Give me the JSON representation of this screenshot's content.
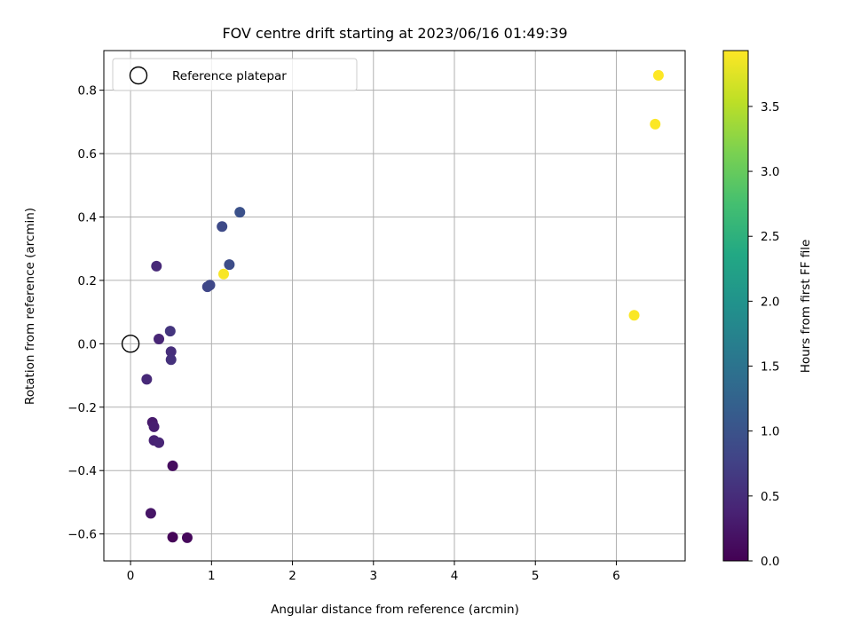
{
  "chart_data": {
    "type": "scatter",
    "title": "FOV centre drift starting at 2023/06/16 01:49:39",
    "xlabel": "Angular distance from reference (arcmin)",
    "ylabel": "Rotation from reference (arcmin)",
    "xlim": [
      -0.33,
      6.85
    ],
    "ylim": [
      -0.685,
      0.925
    ],
    "xticks": [
      0,
      1,
      2,
      3,
      4,
      5,
      6
    ],
    "yticks": [
      -0.6,
      -0.4,
      -0.2,
      0.0,
      0.2,
      0.4,
      0.6,
      0.8
    ],
    "xtick_labels": [
      "0",
      "1",
      "2",
      "3",
      "4",
      "5",
      "6"
    ],
    "ytick_labels": [
      "−0.6",
      "−0.4",
      "−0.2",
      "0.0",
      "0.2",
      "0.4",
      "0.6",
      "0.8"
    ],
    "grid": true,
    "legend": {
      "placement": "top-left",
      "entries": [
        "Reference platepar"
      ]
    },
    "reference_point": {
      "x": 0.0,
      "y": 0.0,
      "label": "Reference platepar"
    },
    "colorbar": {
      "label": "Hours from first FF file",
      "colormap": "viridis",
      "range": [
        0.0,
        3.93
      ],
      "ticks": [
        0.0,
        0.5,
        1.0,
        1.5,
        2.0,
        2.5,
        3.0,
        3.5
      ],
      "tick_labels": [
        "0.0",
        "0.5",
        "1.0",
        "1.5",
        "2.0",
        "2.5",
        "3.0",
        "3.5"
      ]
    },
    "points": [
      {
        "x": 0.52,
        "y": -0.61,
        "c": 0.05
      },
      {
        "x": 0.7,
        "y": -0.612,
        "c": 0.08
      },
      {
        "x": 0.52,
        "y": -0.385,
        "c": 0.12
      },
      {
        "x": 0.25,
        "y": -0.535,
        "c": 0.22
      },
      {
        "x": 0.27,
        "y": -0.248,
        "c": 0.28
      },
      {
        "x": 0.29,
        "y": -0.262,
        "c": 0.32
      },
      {
        "x": 0.29,
        "y": -0.305,
        "c": 0.38
      },
      {
        "x": 0.35,
        "y": -0.312,
        "c": 0.4
      },
      {
        "x": 0.2,
        "y": -0.112,
        "c": 0.45
      },
      {
        "x": 0.35,
        "y": 0.015,
        "c": 0.42
      },
      {
        "x": 0.32,
        "y": 0.245,
        "c": 0.45
      },
      {
        "x": 0.5,
        "y": -0.025,
        "c": 0.52
      },
      {
        "x": 0.5,
        "y": -0.05,
        "c": 0.55
      },
      {
        "x": 0.49,
        "y": 0.04,
        "c": 0.6
      },
      {
        "x": 0.95,
        "y": 0.18,
        "c": 0.82
      },
      {
        "x": 0.98,
        "y": 0.185,
        "c": 0.85
      },
      {
        "x": 1.13,
        "y": 0.37,
        "c": 0.88
      },
      {
        "x": 1.22,
        "y": 0.25,
        "c": 0.92
      },
      {
        "x": 1.35,
        "y": 0.415,
        "c": 0.98
      },
      {
        "x": 1.15,
        "y": 0.22,
        "c": 3.9
      },
      {
        "x": 6.22,
        "y": 0.09,
        "c": 3.91
      },
      {
        "x": 6.48,
        "y": 0.693,
        "c": 3.92
      },
      {
        "x": 6.52,
        "y": 0.847,
        "c": 3.93
      }
    ]
  }
}
